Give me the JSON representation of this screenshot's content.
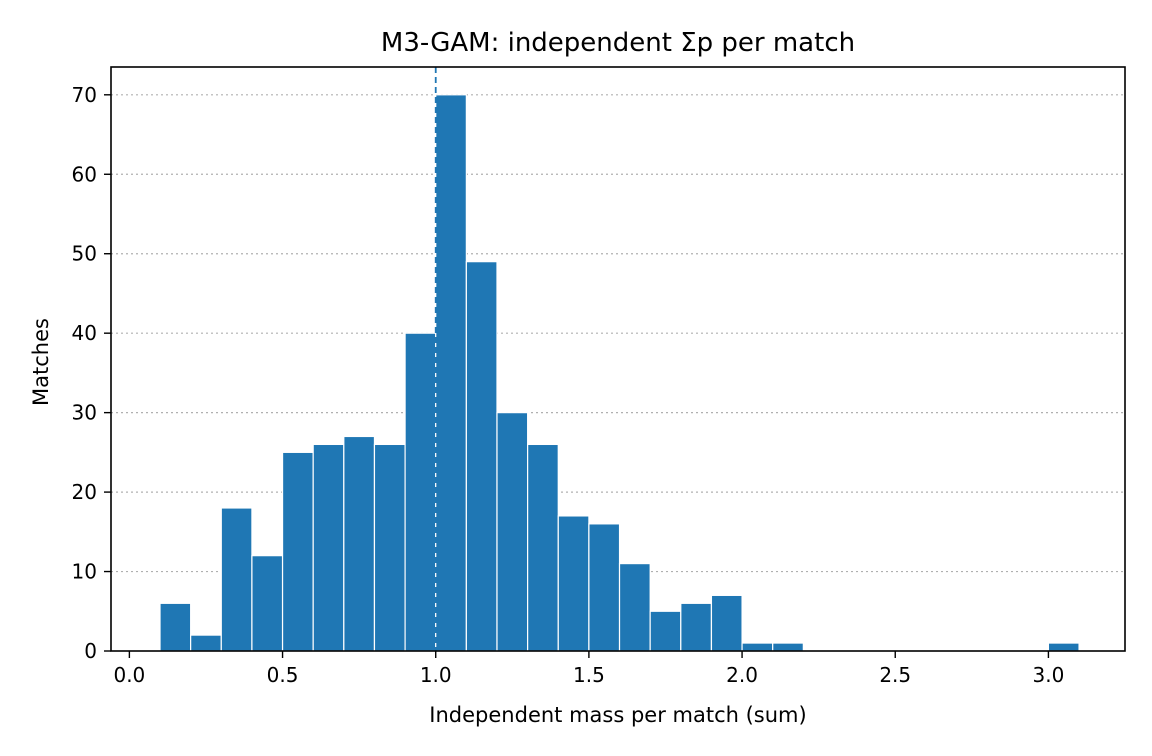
{
  "chart_data": {
    "type": "bar",
    "title": "M3-GAM: independent Σp per match",
    "xlabel": "Independent mass per match (sum)",
    "ylabel": "Matches",
    "xlim": [
      -0.06,
      3.25
    ],
    "ylim": [
      0,
      73.5
    ],
    "xticks": [
      0.0,
      0.5,
      1.0,
      1.5,
      2.0,
      2.5,
      3.0
    ],
    "xtick_labels": [
      "0.0",
      "0.5",
      "1.0",
      "1.5",
      "2.0",
      "2.5",
      "3.0"
    ],
    "yticks": [
      0,
      10,
      20,
      30,
      40,
      50,
      60,
      70
    ],
    "ytick_labels": [
      "0",
      "10",
      "20",
      "30",
      "40",
      "50",
      "60",
      "70"
    ],
    "bin_width": 0.1,
    "bins": [
      {
        "start": 0.1,
        "value": 6
      },
      {
        "start": 0.2,
        "value": 2
      },
      {
        "start": 0.3,
        "value": 18
      },
      {
        "start": 0.4,
        "value": 12
      },
      {
        "start": 0.5,
        "value": 25
      },
      {
        "start": 0.6,
        "value": 26
      },
      {
        "start": 0.7,
        "value": 27
      },
      {
        "start": 0.8,
        "value": 26
      },
      {
        "start": 0.9,
        "value": 40
      },
      {
        "start": 1.0,
        "value": 70
      },
      {
        "start": 1.1,
        "value": 49
      },
      {
        "start": 1.2,
        "value": 30
      },
      {
        "start": 1.3,
        "value": 26
      },
      {
        "start": 1.4,
        "value": 17
      },
      {
        "start": 1.5,
        "value": 16
      },
      {
        "start": 1.6,
        "value": 11
      },
      {
        "start": 1.7,
        "value": 5
      },
      {
        "start": 1.8,
        "value": 6
      },
      {
        "start": 1.9,
        "value": 7
      },
      {
        "start": 2.0,
        "value": 1
      },
      {
        "start": 2.1,
        "value": 1
      },
      {
        "start": 3.0,
        "value": 1
      }
    ],
    "reference_line": {
      "x": 1.0,
      "style": "dashed",
      "color": "#1f77b4"
    },
    "bar_color": "#1f77b4",
    "grid": {
      "axis": "y",
      "style": "dotted"
    },
    "legend": "none"
  }
}
